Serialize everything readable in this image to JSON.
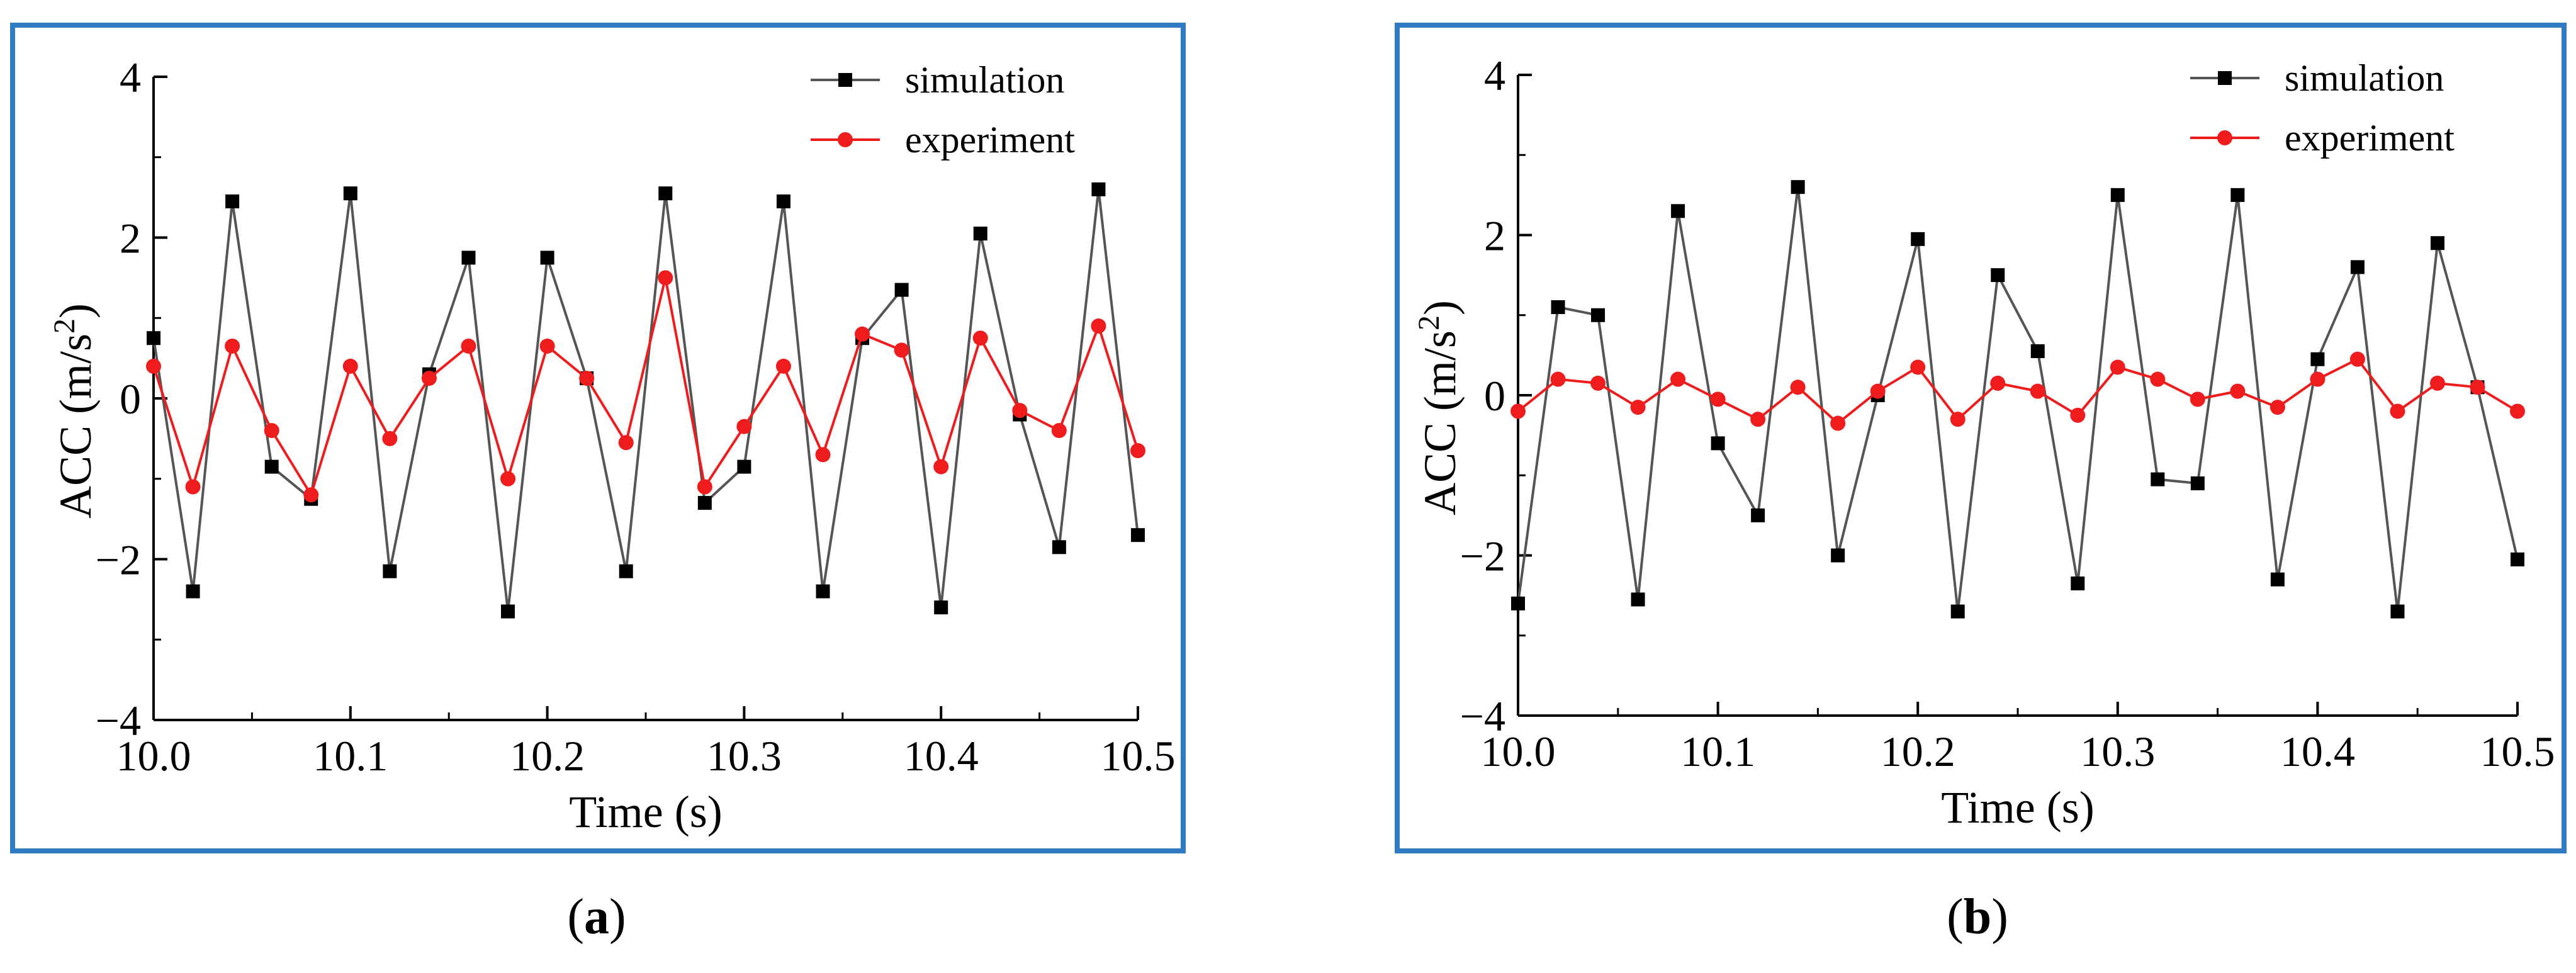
{
  "chart_data": [
    {
      "type": "line",
      "panel": "a",
      "caption": "a",
      "title": "",
      "xlabel": "Time (s)",
      "ylabel_main": "ACC (m/s",
      "ylabel_sup": "2",
      "ylabel_close": ")",
      "xlim": [
        10.0,
        10.5
      ],
      "ylim": [
        -4,
        4
      ],
      "xticks": [
        10.0,
        10.1,
        10.2,
        10.3,
        10.4,
        10.5
      ],
      "xtick_labels": [
        "10.0",
        "10.1",
        "10.2",
        "10.3",
        "10.4",
        "10.5"
      ],
      "yticks": [
        -4,
        -2,
        0,
        2,
        4
      ],
      "ytick_labels": [
        "−4",
        "−2",
        "0",
        "2",
        "4"
      ],
      "legend_position": "top-right",
      "series": [
        {
          "name": "simulation",
          "color": "#555555",
          "marker": "square",
          "marker_color": "#000000",
          "x": [
            10.0,
            10.02,
            10.04,
            10.06,
            10.08,
            10.1,
            10.12,
            10.14,
            10.16,
            10.18,
            10.2,
            10.22,
            10.24,
            10.26,
            10.28,
            10.3,
            10.32,
            10.34,
            10.36,
            10.38,
            10.4,
            10.42,
            10.44,
            10.46,
            10.48,
            10.5
          ],
          "values": [
            0.75,
            -2.4,
            2.45,
            -0.85,
            -1.25,
            2.55,
            -2.15,
            0.3,
            1.75,
            -2.65,
            1.75,
            0.25,
            -2.15,
            2.55,
            -1.3,
            -0.85,
            2.45,
            -2.4,
            0.75,
            1.35,
            -2.6,
            2.05,
            -0.2,
            -1.85,
            2.6,
            -1.7
          ]
        },
        {
          "name": "experiment",
          "color": "#ee1c1c",
          "marker": "circle",
          "marker_color": "#ee1c1c",
          "x": [
            10.0,
            10.02,
            10.04,
            10.06,
            10.08,
            10.1,
            10.12,
            10.14,
            10.16,
            10.18,
            10.2,
            10.22,
            10.24,
            10.26,
            10.28,
            10.3,
            10.32,
            10.34,
            10.36,
            10.38,
            10.4,
            10.42,
            10.44,
            10.46,
            10.48,
            10.5
          ],
          "values": [
            0.4,
            -1.1,
            0.65,
            -0.4,
            -1.2,
            0.4,
            -0.5,
            0.25,
            0.65,
            -1.0,
            0.65,
            0.25,
            -0.55,
            1.5,
            -1.1,
            -0.35,
            0.4,
            -0.7,
            0.8,
            0.6,
            -0.85,
            0.75,
            -0.15,
            -0.4,
            0.9,
            -0.65
          ]
        }
      ]
    },
    {
      "type": "line",
      "panel": "b",
      "caption": "b",
      "title": "",
      "xlabel": "Time (s)",
      "ylabel_main": "ACC (m/s",
      "ylabel_sup": "2",
      "ylabel_close": ")",
      "xlim": [
        10.0,
        10.5
      ],
      "ylim": [
        -4,
        4
      ],
      "xticks": [
        10.0,
        10.1,
        10.2,
        10.3,
        10.4,
        10.5
      ],
      "xtick_labels": [
        "10.0",
        "10.1",
        "10.2",
        "10.3",
        "10.4",
        "10.5"
      ],
      "yticks": [
        -4,
        -2,
        0,
        2,
        4
      ],
      "ytick_labels": [
        "−4",
        "−2",
        "0",
        "2",
        "4"
      ],
      "legend_position": "top-right",
      "series": [
        {
          "name": "simulation",
          "color": "#555555",
          "marker": "square",
          "marker_color": "#000000",
          "x": [
            10.0,
            10.02,
            10.04,
            10.06,
            10.08,
            10.1,
            10.12,
            10.14,
            10.16,
            10.18,
            10.2,
            10.22,
            10.24,
            10.26,
            10.28,
            10.3,
            10.32,
            10.34,
            10.36,
            10.38,
            10.4,
            10.42,
            10.44,
            10.46,
            10.48,
            10.5
          ],
          "values": [
            -2.6,
            1.1,
            1.0,
            -2.55,
            2.3,
            -0.6,
            -1.5,
            2.6,
            -2.0,
            0.0,
            1.95,
            -2.7,
            1.5,
            0.55,
            -2.35,
            2.5,
            -1.05,
            -1.1,
            2.5,
            -2.3,
            0.45,
            1.6,
            -2.7,
            1.9,
            0.1,
            -2.05
          ]
        },
        {
          "name": "experiment",
          "color": "#ee1c1c",
          "marker": "circle",
          "marker_color": "#ee1c1c",
          "x": [
            10.0,
            10.02,
            10.04,
            10.06,
            10.08,
            10.1,
            10.12,
            10.14,
            10.16,
            10.18,
            10.2,
            10.22,
            10.24,
            10.26,
            10.28,
            10.3,
            10.32,
            10.34,
            10.36,
            10.38,
            10.4,
            10.42,
            10.44,
            10.46,
            10.48,
            10.5
          ],
          "values": [
            -0.2,
            0.2,
            0.15,
            -0.15,
            0.2,
            -0.05,
            -0.3,
            0.1,
            -0.35,
            0.05,
            0.35,
            -0.3,
            0.15,
            0.05,
            -0.25,
            0.35,
            0.2,
            -0.05,
            0.05,
            -0.15,
            0.2,
            0.45,
            -0.2,
            0.15,
            0.1,
            -0.2
          ]
        }
      ]
    }
  ]
}
